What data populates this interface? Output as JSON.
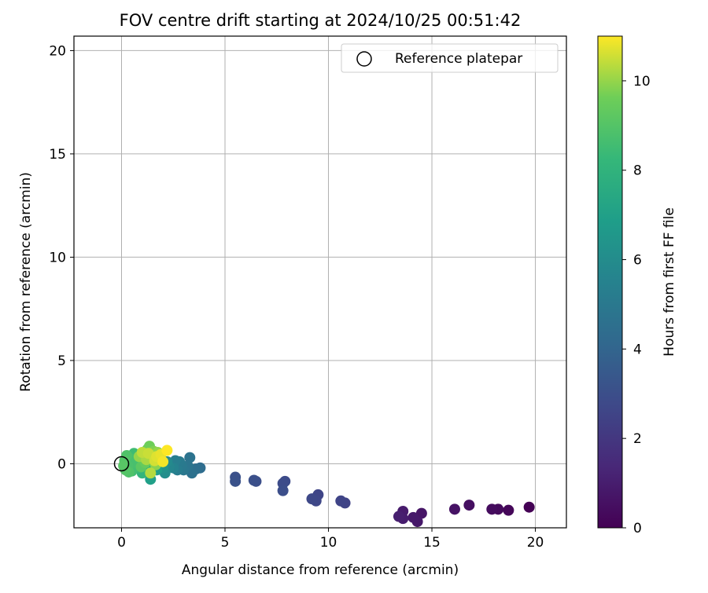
{
  "chart_data": {
    "type": "scatter",
    "title": "FOV centre drift starting at 2024/10/25 00:51:42",
    "xlabel": "Angular distance from reference (arcmin)",
    "ylabel": "Rotation from reference (arcmin)",
    "xlim": [
      -2.3,
      21.5
    ],
    "ylim": [
      -3.1,
      20.7
    ],
    "xticks": [
      0,
      5,
      10,
      15,
      20
    ],
    "yticks": [
      0,
      5,
      10,
      15,
      20
    ],
    "grid": true,
    "legend": {
      "placement": "top-right",
      "entries": [
        {
          "label": "Reference platepar",
          "marker": "open-circle",
          "color": "#000000"
        }
      ]
    },
    "reference_point": {
      "x": 0,
      "y": 0
    },
    "colorbar": {
      "label": "Hours from first FF file",
      "min": 0,
      "max": 11,
      "ticks": [
        0,
        2,
        4,
        6,
        8,
        10
      ],
      "colormap": "viridis"
    },
    "points": [
      {
        "x": 19.7,
        "y": -2.1,
        "c": 0.0
      },
      {
        "x": 18.7,
        "y": -2.25,
        "c": 0.2
      },
      {
        "x": 18.2,
        "y": -2.2,
        "c": 0.3
      },
      {
        "x": 17.9,
        "y": -2.2,
        "c": 0.4
      },
      {
        "x": 16.8,
        "y": -2.0,
        "c": 0.5
      },
      {
        "x": 16.1,
        "y": -2.2,
        "c": 0.6
      },
      {
        "x": 14.5,
        "y": -2.4,
        "c": 0.7
      },
      {
        "x": 14.3,
        "y": -2.8,
        "c": 0.8
      },
      {
        "x": 14.1,
        "y": -2.6,
        "c": 0.85
      },
      {
        "x": 13.6,
        "y": -2.3,
        "c": 0.9
      },
      {
        "x": 13.6,
        "y": -2.65,
        "c": 1.0
      },
      {
        "x": 13.4,
        "y": -2.55,
        "c": 1.05
      },
      {
        "x": 10.8,
        "y": -1.9,
        "c": 2.5
      },
      {
        "x": 10.6,
        "y": -1.8,
        "c": 2.55
      },
      {
        "x": 9.5,
        "y": -1.5,
        "c": 2.6
      },
      {
        "x": 9.4,
        "y": -1.8,
        "c": 2.65
      },
      {
        "x": 9.2,
        "y": -1.7,
        "c": 2.7
      },
      {
        "x": 7.9,
        "y": -0.85,
        "c": 2.85
      },
      {
        "x": 7.8,
        "y": -0.95,
        "c": 2.9
      },
      {
        "x": 7.8,
        "y": -1.3,
        "c": 2.95
      },
      {
        "x": 6.5,
        "y": -0.85,
        "c": 3.0
      },
      {
        "x": 6.4,
        "y": -0.8,
        "c": 3.05
      },
      {
        "x": 5.5,
        "y": -0.65,
        "c": 3.1
      },
      {
        "x": 5.5,
        "y": -0.85,
        "c": 3.15
      },
      {
        "x": 3.8,
        "y": -0.2,
        "c": 4.4
      },
      {
        "x": 3.6,
        "y": -0.25,
        "c": 4.5
      },
      {
        "x": 3.4,
        "y": -0.45,
        "c": 4.6
      },
      {
        "x": 3.3,
        "y": 0.3,
        "c": 4.7
      },
      {
        "x": 3.2,
        "y": -0.1,
        "c": 4.8
      },
      {
        "x": 3.0,
        "y": -0.3,
        "c": 4.9
      },
      {
        "x": 2.9,
        "y": -0.1,
        "c": 5.0
      },
      {
        "x": 2.8,
        "y": 0.1,
        "c": 5.1
      },
      {
        "x": 2.7,
        "y": -0.3,
        "c": 5.2
      },
      {
        "x": 2.6,
        "y": 0.15,
        "c": 5.3
      },
      {
        "x": 2.5,
        "y": -0.2,
        "c": 5.5
      },
      {
        "x": 2.3,
        "y": -0.15,
        "c": 5.7
      },
      {
        "x": 2.2,
        "y": 0.1,
        "c": 5.9
      },
      {
        "x": 2.1,
        "y": -0.45,
        "c": 6.1
      },
      {
        "x": 2.0,
        "y": -0.2,
        "c": 6.3
      },
      {
        "x": 1.9,
        "y": 0.2,
        "c": 6.5
      },
      {
        "x": 1.8,
        "y": -0.05,
        "c": 6.7
      },
      {
        "x": 1.7,
        "y": -0.3,
        "c": 6.9
      },
      {
        "x": 1.4,
        "y": -0.75,
        "c": 7.0
      },
      {
        "x": 1.6,
        "y": 0.3,
        "c": 7.2
      },
      {
        "x": 1.5,
        "y": -0.1,
        "c": 7.4
      },
      {
        "x": 1.3,
        "y": 0.45,
        "c": 7.6
      },
      {
        "x": 1.2,
        "y": -0.3,
        "c": 7.8
      },
      {
        "x": 1.1,
        "y": 0.1,
        "c": 8.0
      },
      {
        "x": 1.0,
        "y": -0.45,
        "c": 8.1
      },
      {
        "x": 0.9,
        "y": 0.3,
        "c": 8.2
      },
      {
        "x": 0.8,
        "y": -0.2,
        "c": 8.3
      },
      {
        "x": 0.7,
        "y": 0.05,
        "c": 8.4
      },
      {
        "x": 0.6,
        "y": 0.5,
        "c": 8.5
      },
      {
        "x": 0.5,
        "y": -0.35,
        "c": 8.6
      },
      {
        "x": 0.4,
        "y": 0.25,
        "c": 8.7
      },
      {
        "x": 0.3,
        "y": -0.1,
        "c": 8.8
      },
      {
        "x": 0.25,
        "y": 0.4,
        "c": 8.9
      },
      {
        "x": 0.2,
        "y": -0.3,
        "c": 9.0
      },
      {
        "x": 0.15,
        "y": 0.15,
        "c": 9.0
      },
      {
        "x": 0.1,
        "y": -0.1,
        "c": 9.1
      },
      {
        "x": 0.35,
        "y": -0.4,
        "c": 8.9
      },
      {
        "x": 0.55,
        "y": 0.05,
        "c": 8.7
      },
      {
        "x": 0.75,
        "y": 0.4,
        "c": 8.5
      },
      {
        "x": 0.95,
        "y": -0.15,
        "c": 9.2
      },
      {
        "x": 1.05,
        "y": 0.45,
        "c": 9.3
      },
      {
        "x": 1.15,
        "y": 0.05,
        "c": 9.4
      },
      {
        "x": 1.25,
        "y": 0.7,
        "c": 9.5
      },
      {
        "x": 1.35,
        "y": 0.85,
        "c": 9.6
      },
      {
        "x": 1.45,
        "y": 0.3,
        "c": 9.7
      },
      {
        "x": 1.55,
        "y": 0.6,
        "c": 9.8
      },
      {
        "x": 1.65,
        "y": -0.05,
        "c": 9.9
      },
      {
        "x": 1.75,
        "y": 0.55,
        "c": 10.0
      },
      {
        "x": 1.85,
        "y": 0.25,
        "c": 10.1
      },
      {
        "x": 1.4,
        "y": -0.45,
        "c": 10.3
      },
      {
        "x": 1.2,
        "y": 0.2,
        "c": 10.2
      },
      {
        "x": 1.0,
        "y": 0.55,
        "c": 10.4
      },
      {
        "x": 1.3,
        "y": 0.5,
        "c": 10.5
      },
      {
        "x": 1.6,
        "y": 0.15,
        "c": 10.6
      },
      {
        "x": 1.9,
        "y": 0.45,
        "c": 10.8
      },
      {
        "x": 2.0,
        "y": 0.1,
        "c": 10.9
      },
      {
        "x": 2.2,
        "y": 0.65,
        "c": 11.0
      },
      {
        "x": 1.7,
        "y": 0.35,
        "c": 10.7
      },
      {
        "x": 0.85,
        "y": 0.35,
        "c": 10.0
      }
    ]
  }
}
